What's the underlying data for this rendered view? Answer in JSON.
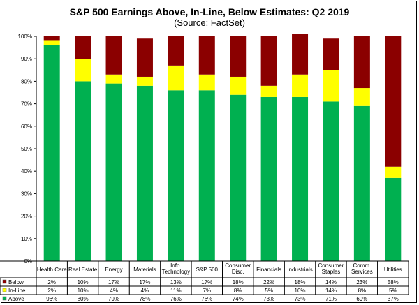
{
  "title": "S&P 500 Earnings Above, In-Line, Below Estimates: Q2 2019",
  "subtitle": "(Source: FactSet)",
  "chart_data": {
    "type": "bar",
    "stacked": true,
    "percent": true,
    "title": "S&P 500 Earnings Above, In-Line, Below Estimates: Q2 2019",
    "subtitle": "(Source: FactSet)",
    "categories": [
      "Health Care",
      "Real Estate",
      "Energy",
      "Materials",
      "Info. Technology",
      "S&P 500",
      "Consumer Disc.",
      "Financials",
      "Industrials",
      "Consumer Staples",
      "Comm. Services",
      "Utilities"
    ],
    "category_lines": [
      [
        "Health Care"
      ],
      [
        "Real Estate"
      ],
      [
        "Energy"
      ],
      [
        "Materials"
      ],
      [
        "Info.",
        "Technology"
      ],
      [
        "S&P 500"
      ],
      [
        "Consumer",
        "Disc."
      ],
      [
        "Financials"
      ],
      [
        "Industrials"
      ],
      [
        "Consumer",
        "Staples"
      ],
      [
        "Comm.",
        "Services"
      ],
      [
        "Utilities"
      ]
    ],
    "series": [
      {
        "name": "Below",
        "color": "#8b0000",
        "values": [
          2,
          10,
          17,
          17,
          13,
          17,
          18,
          22,
          18,
          14,
          23,
          58
        ],
        "labels": [
          "2%",
          "10%",
          "17%",
          "17%",
          "13%",
          "17%",
          "18%",
          "22%",
          "18%",
          "14%",
          "23%",
          "58%"
        ]
      },
      {
        "name": "In-Line",
        "color": "#ffff00",
        "values": [
          2,
          10,
          4,
          4,
          11,
          7,
          8,
          5,
          10,
          14,
          8,
          5
        ],
        "labels": [
          "2%",
          "10%",
          "4%",
          "4%",
          "11%",
          "7%",
          "8%",
          "5%",
          "10%",
          "14%",
          "8%",
          "5%"
        ]
      },
      {
        "name": "Above",
        "color": "#00b050",
        "values": [
          96,
          80,
          79,
          78,
          76,
          76,
          74,
          73,
          73,
          71,
          69,
          37
        ],
        "labels": [
          "96%",
          "80%",
          "79%",
          "78%",
          "76%",
          "76%",
          "74%",
          "73%",
          "73%",
          "71%",
          "69%",
          "37%"
        ]
      }
    ],
    "stack_order_bottom_to_top": [
      "Above",
      "In-Line",
      "Below"
    ],
    "ylim": [
      0,
      100
    ],
    "yticks": [
      "0%",
      "10%",
      "20%",
      "30%",
      "40%",
      "50%",
      "60%",
      "70%",
      "80%",
      "90%",
      "100%"
    ],
    "grid": false,
    "legend": "data-table"
  }
}
